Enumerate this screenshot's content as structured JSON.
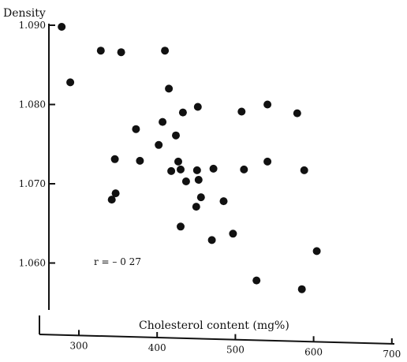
{
  "chart_data": {
    "type": "scatter",
    "ylabel": "Density",
    "xlabel": "Cholesterol content (mg%)",
    "annotation": "r = – 0 27",
    "xlim": [
      255,
      700
    ],
    "ylim": [
      1.0535,
      1.0905
    ],
    "x_ticks": [
      {
        "value": 300,
        "label": "300"
      },
      {
        "value": 400,
        "label": "400"
      },
      {
        "value": 500,
        "label": "500"
      },
      {
        "value": 600,
        "label": "600"
      },
      {
        "value": 700,
        "label": "700"
      }
    ],
    "y_ticks": [
      {
        "value": 1.09,
        "label": "1.090"
      },
      {
        "value": 1.08,
        "label": "1.080"
      },
      {
        "value": 1.07,
        "label": "1.070"
      },
      {
        "value": 1.06,
        "label": "1.060"
      }
    ],
    "point_color": "#111111",
    "points": [
      {
        "x": 278,
        "y": 1.0898
      },
      {
        "x": 289,
        "y": 1.0828
      },
      {
        "x": 328,
        "y": 1.0868
      },
      {
        "x": 354,
        "y": 1.0866
      },
      {
        "x": 410,
        "y": 1.0868
      },
      {
        "x": 415,
        "y": 1.082
      },
      {
        "x": 452,
        "y": 1.0797
      },
      {
        "x": 433,
        "y": 1.079
      },
      {
        "x": 407,
        "y": 1.0778
      },
      {
        "x": 373,
        "y": 1.0769
      },
      {
        "x": 424,
        "y": 1.0761
      },
      {
        "x": 402,
        "y": 1.0749
      },
      {
        "x": 346,
        "y": 1.0731
      },
      {
        "x": 378,
        "y": 1.0729
      },
      {
        "x": 427,
        "y": 1.0728
      },
      {
        "x": 418,
        "y": 1.0716
      },
      {
        "x": 430,
        "y": 1.0718
      },
      {
        "x": 451,
        "y": 1.0717
      },
      {
        "x": 472,
        "y": 1.0719
      },
      {
        "x": 437,
        "y": 1.0703
      },
      {
        "x": 453,
        "y": 1.0705
      },
      {
        "x": 456,
        "y": 1.0683
      },
      {
        "x": 485,
        "y": 1.0678
      },
      {
        "x": 450,
        "y": 1.0671
      },
      {
        "x": 347,
        "y": 1.0688
      },
      {
        "x": 342,
        "y": 1.068
      },
      {
        "x": 430,
        "y": 1.0646
      },
      {
        "x": 470,
        "y": 1.0629
      },
      {
        "x": 497,
        "y": 1.0637
      },
      {
        "x": 508,
        "y": 1.0791
      },
      {
        "x": 541,
        "y": 1.08
      },
      {
        "x": 579,
        "y": 1.0789
      },
      {
        "x": 541,
        "y": 1.0728
      },
      {
        "x": 511,
        "y": 1.0718
      },
      {
        "x": 588,
        "y": 1.0717
      },
      {
        "x": 604,
        "y": 1.0615
      },
      {
        "x": 527,
        "y": 1.0578
      },
      {
        "x": 585,
        "y": 1.0567
      }
    ]
  }
}
